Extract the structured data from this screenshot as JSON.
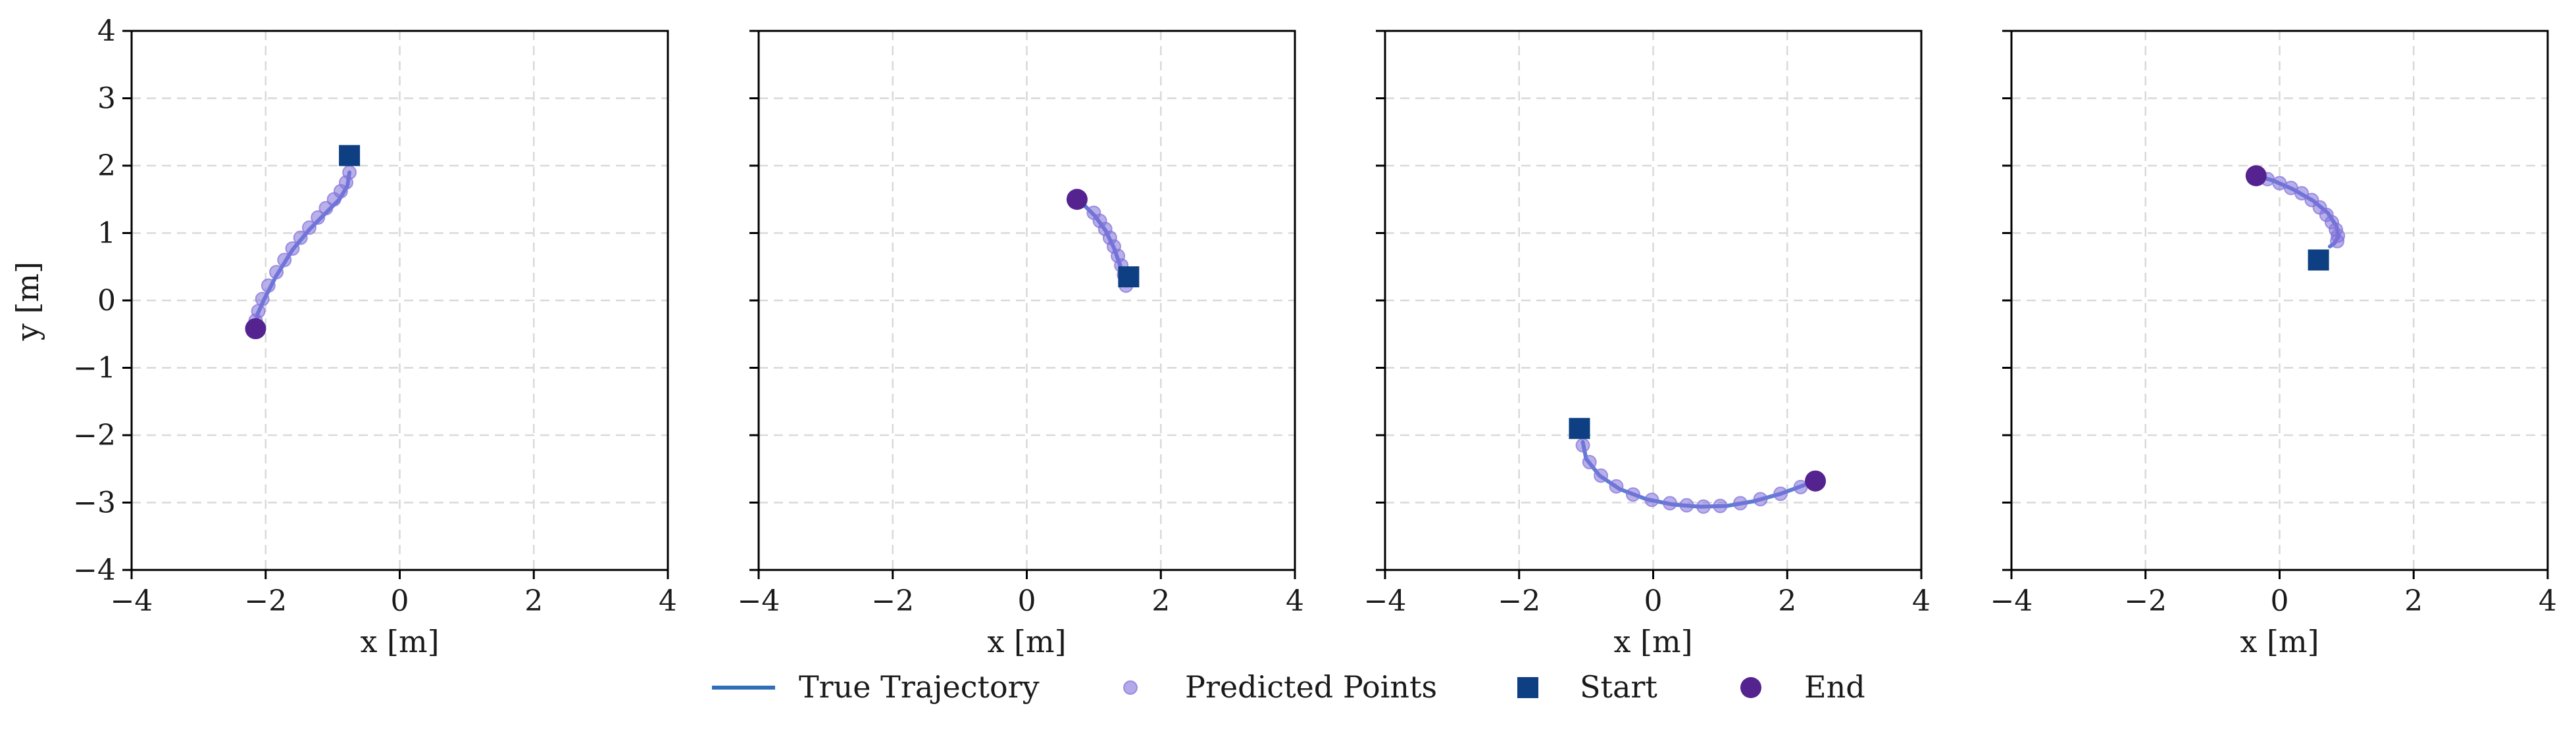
{
  "chart_data": [
    {
      "type": "line",
      "xlabel": "x [m]",
      "ylabel": "y [m]",
      "xlim": [
        -4,
        4
      ],
      "ylim": [
        -4,
        4
      ],
      "xticks": [
        "−4",
        "−2",
        "0",
        "2",
        "4"
      ],
      "yticks": [
        "4",
        "3",
        "2",
        "1",
        "0",
        "−1",
        "−2",
        "−3",
        "−4"
      ],
      "grid": true,
      "series": [
        {
          "name": "True Trajectory",
          "x": [
            -0.75,
            -0.78,
            -0.9,
            -1.1,
            -1.35,
            -1.6,
            -1.85,
            -2.03,
            -2.12,
            -2.15
          ],
          "y": [
            1.9,
            1.7,
            1.5,
            1.3,
            1.05,
            0.75,
            0.35,
            0.0,
            -0.2,
            -0.4
          ]
        },
        {
          "name": "Predicted Points",
          "x": [
            -0.75,
            -0.8,
            -0.88,
            -0.98,
            -1.1,
            -1.22,
            -1.35,
            -1.48,
            -1.6,
            -1.72,
            -1.84,
            -1.96,
            -2.05,
            -2.11,
            -2.15
          ],
          "y": [
            1.9,
            1.75,
            1.62,
            1.5,
            1.37,
            1.23,
            1.08,
            0.93,
            0.77,
            0.6,
            0.42,
            0.22,
            0.02,
            -0.16,
            -0.3
          ]
        }
      ],
      "start": {
        "x": -0.75,
        "y": 2.15
      },
      "end": {
        "x": -2.15,
        "y": -0.42
      }
    },
    {
      "type": "line",
      "xlabel": "x [m]",
      "ylabel": "",
      "xlim": [
        -4,
        4
      ],
      "ylim": [
        -4,
        4
      ],
      "xticks": [
        "−4",
        "−2",
        "0",
        "2",
        "4"
      ],
      "yticks": [],
      "grid": true,
      "series": [
        {
          "name": "True Trajectory",
          "x": [
            1.48,
            1.4,
            1.3,
            1.18,
            1.02,
            0.85,
            0.75
          ],
          "y": [
            0.22,
            0.5,
            0.78,
            1.03,
            1.25,
            1.42,
            1.5
          ]
        },
        {
          "name": "Predicted Points",
          "x": [
            1.48,
            1.45,
            1.41,
            1.36,
            1.3,
            1.24,
            1.17,
            1.09,
            1.0
          ],
          "y": [
            0.22,
            0.38,
            0.52,
            0.66,
            0.8,
            0.93,
            1.06,
            1.18,
            1.3
          ]
        }
      ],
      "start": {
        "x": 1.52,
        "y": 0.35
      },
      "end": {
        "x": 0.75,
        "y": 1.5
      }
    },
    {
      "type": "line",
      "xlabel": "x [m]",
      "ylabel": "",
      "xlim": [
        -4,
        4
      ],
      "ylim": [
        -4,
        4
      ],
      "xticks": [
        "−4",
        "−2",
        "0",
        "2",
        "4"
      ],
      "yticks": [],
      "grid": true,
      "series": [
        {
          "name": "True Trajectory",
          "x": [
            -1.05,
            -1.0,
            -0.8,
            -0.5,
            -0.1,
            0.3,
            0.7,
            1.1,
            1.5,
            1.9,
            2.2,
            2.42
          ],
          "y": [
            -2.1,
            -2.35,
            -2.6,
            -2.8,
            -2.95,
            -3.03,
            -3.06,
            -3.05,
            -2.98,
            -2.87,
            -2.76,
            -2.68
          ]
        },
        {
          "name": "Predicted Points",
          "x": [
            -1.05,
            -0.95,
            -0.78,
            -0.55,
            -0.3,
            -0.02,
            0.25,
            0.5,
            0.75,
            1.0,
            1.3,
            1.6,
            1.9,
            2.2
          ],
          "y": [
            -2.15,
            -2.4,
            -2.6,
            -2.76,
            -2.88,
            -2.96,
            -3.01,
            -3.04,
            -3.06,
            -3.05,
            -3.01,
            -2.95,
            -2.87,
            -2.77
          ]
        }
      ],
      "start": {
        "x": -1.1,
        "y": -1.9
      },
      "end": {
        "x": 2.42,
        "y": -2.68
      }
    },
    {
      "type": "line",
      "xlabel": "x [m]",
      "ylabel": "",
      "xlim": [
        -4,
        4
      ],
      "ylim": [
        -4,
        4
      ],
      "xticks": [
        "−4",
        "−2",
        "0",
        "2",
        "4"
      ],
      "yticks": [],
      "grid": true,
      "series": [
        {
          "name": "True Trajectory",
          "x": [
            -0.35,
            -0.1,
            0.2,
            0.5,
            0.72,
            0.85,
            0.88,
            0.82,
            0.75
          ],
          "y": [
            1.85,
            1.78,
            1.65,
            1.48,
            1.3,
            1.1,
            0.95,
            0.85,
            0.8
          ]
        },
        {
          "name": "Predicted Points",
          "x": [
            -0.35,
            -0.18,
            0.0,
            0.17,
            0.33,
            0.48,
            0.6,
            0.7,
            0.78,
            0.84,
            0.87,
            0.86
          ],
          "y": [
            1.85,
            1.8,
            1.74,
            1.67,
            1.59,
            1.49,
            1.38,
            1.27,
            1.16,
            1.05,
            0.96,
            0.88
          ]
        }
      ],
      "start": {
        "x": 0.58,
        "y": 0.6
      },
      "end": {
        "x": -0.35,
        "y": 1.85
      }
    }
  ],
  "legend": {
    "placement": "bottom-center",
    "items": [
      {
        "label": "True Trajectory",
        "marker": "line"
      },
      {
        "label": "Predicted Points",
        "marker": "small-circle"
      },
      {
        "label": "Start",
        "marker": "square"
      },
      {
        "label": "End",
        "marker": "circle"
      }
    ]
  },
  "colors": {
    "true_trajectory": "#4a6fd0",
    "predicted_points": "#8070d8",
    "start": "#0d3f82",
    "end": "#55238f",
    "legend_line": "#2f6fb8"
  }
}
